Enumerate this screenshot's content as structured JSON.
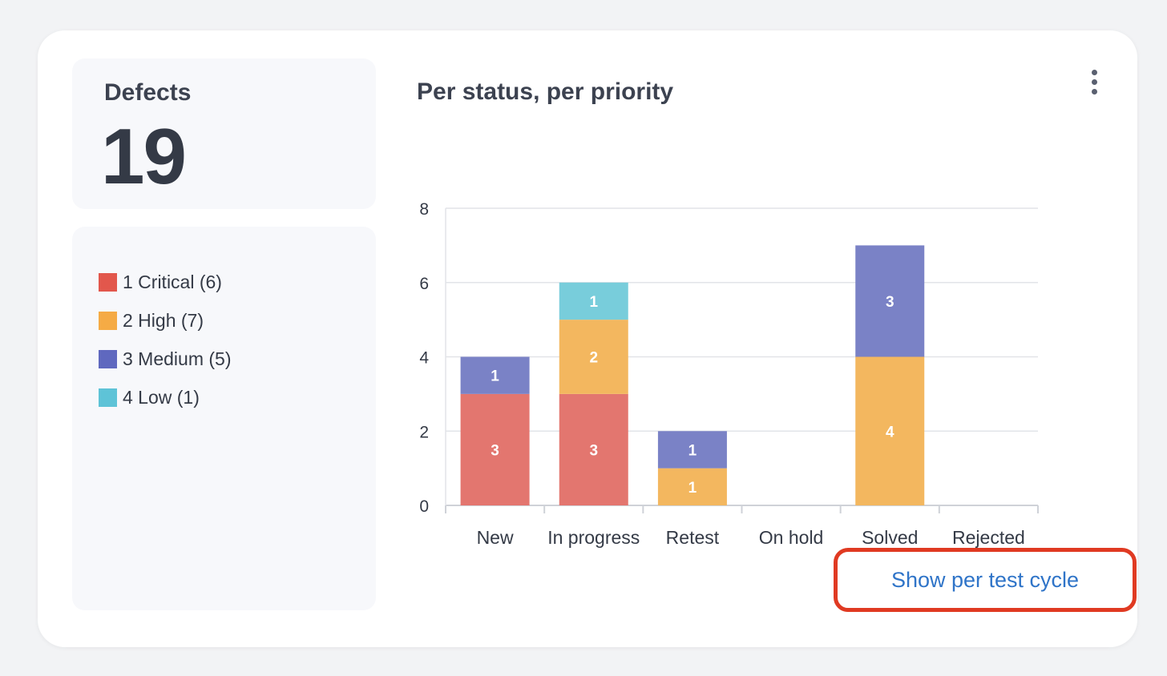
{
  "summary": {
    "label": "Defects",
    "count": "19"
  },
  "legend": [
    {
      "label": "1 Critical (6)",
      "color": "#e2574c"
    },
    {
      "label": "2 High (7)",
      "color": "#f5ab45"
    },
    {
      "label": "3 Medium (5)",
      "color": "#5f68bf"
    },
    {
      "label": "4 Low (1)",
      "color": "#5ec3d7"
    }
  ],
  "menu": {
    "icon": "more-vertical-icon"
  },
  "link": {
    "label": "Show per test cycle"
  },
  "chart_data": {
    "type": "bar",
    "stacked": true,
    "title": "Per status, per priority",
    "categories": [
      "New",
      "In progress",
      "Retest",
      "On hold",
      "Solved",
      "Rejected"
    ],
    "series": [
      {
        "name": "1 Critical (6)",
        "color": "#e3766f",
        "values": [
          3,
          3,
          0,
          0,
          0,
          0
        ]
      },
      {
        "name": "2 High (7)",
        "color": "#f3b75f",
        "values": [
          0,
          2,
          1,
          0,
          4,
          0
        ]
      },
      {
        "name": "3 Medium (5)",
        "color": "#7a82c6",
        "values": [
          1,
          0,
          1,
          0,
          3,
          0
        ]
      },
      {
        "name": "4 Low (1)",
        "color": "#78cddb",
        "values": [
          0,
          1,
          0,
          0,
          0,
          0
        ]
      }
    ],
    "yticks": [
      0,
      2,
      4,
      6,
      8
    ],
    "ylim": [
      0,
      8
    ],
    "grid": true,
    "legend": "left"
  }
}
